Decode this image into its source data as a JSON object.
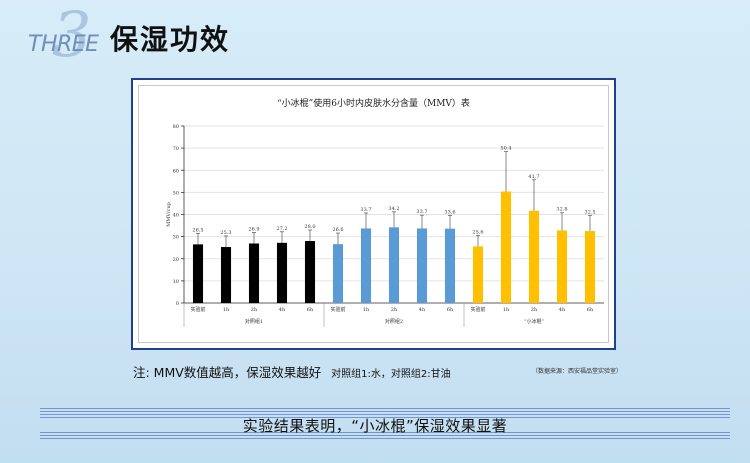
{
  "header": {
    "badge_word": "THREE",
    "badge_number": "3",
    "title": "保湿功效"
  },
  "chart_data": {
    "type": "bar",
    "title": "“小冰棍”使用6小时内皮肤水分含量（MMV）表",
    "ylabel": "MMV/cup",
    "xlabel": "",
    "ylim": [
      0,
      80
    ],
    "yticks": [
      0,
      10,
      20,
      30,
      40,
      50,
      60,
      70,
      80
    ],
    "grid": true,
    "legend": "none",
    "groups": [
      {
        "name": "对照组1",
        "color": "#000000",
        "categories": [
          "实验前",
          "1h",
          "2h",
          "4h",
          "6h"
        ],
        "values": [
          26.5,
          25.3,
          26.9,
          27.2,
          28.0
        ],
        "labels": [
          "26.5",
          "25.3",
          "26.9",
          "27.2",
          "28.0"
        ],
        "errors": [
          5,
          5,
          5,
          5,
          5
        ]
      },
      {
        "name": "对照组2",
        "color": "#5b9bd5",
        "categories": [
          "实验前",
          "1h",
          "2h",
          "4h",
          "6h"
        ],
        "values": [
          26.6,
          33.7,
          34.2,
          33.7,
          33.6
        ],
        "labels": [
          "26.6",
          "33.7",
          "34.2",
          "33.7",
          "33.6"
        ],
        "errors": [
          5,
          7,
          7,
          6,
          6
        ]
      },
      {
        "name": "“小冰棍”",
        "color": "#ffc000",
        "categories": [
          "实验前",
          "1h",
          "2h",
          "4h",
          "6h"
        ],
        "values": [
          25.6,
          50.4,
          41.7,
          32.8,
          32.5
        ],
        "labels": [
          "25.6",
          "50.4",
          "41.7",
          "32.8",
          "32.5"
        ],
        "errors": [
          5,
          18,
          14,
          8,
          7
        ]
      }
    ]
  },
  "note": {
    "main": "注: MMV数值越高，保湿效果越好",
    "sub": "对照组1:水，对照组2:甘油",
    "source": "（数据来源：西安福品堂实验室）"
  },
  "conclusion": "实验结果表明，“小冰棍”保湿效果显著"
}
